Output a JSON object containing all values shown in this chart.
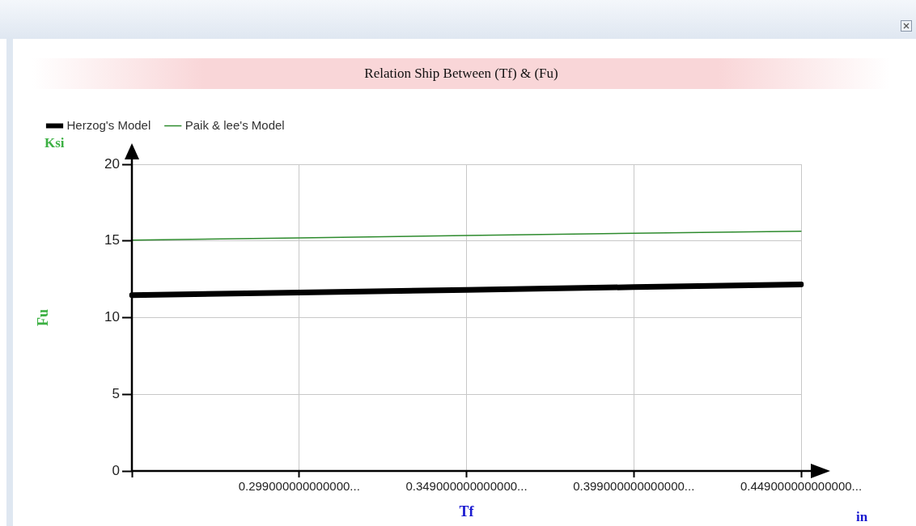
{
  "chart_data": {
    "type": "line",
    "title": "Relation Ship Between (Tf) & (Fu)",
    "xlabel": "Tf",
    "ylabel": "Fu",
    "categories": [
      null,
      "0.299000000000000...",
      "0.349000000000000...",
      "0.399000000000000...",
      "0.449000000000000..."
    ],
    "series": [
      {
        "name": "Herzog's Model",
        "color": "#000000",
        "values": [
          11.47,
          11.64,
          11.81,
          11.99,
          12.16
        ]
      },
      {
        "name": "Paik & lee's Model",
        "color": "#2e8b2e",
        "values": [
          15.05,
          15.2,
          15.35,
          15.5,
          15.63
        ]
      }
    ],
    "ylim": [
      0,
      20
    ],
    "yticks": [
      0,
      5,
      10,
      15,
      20
    ],
    "annotations": [
      "Ksi",
      "in"
    ],
    "grid": true,
    "legend": "top left",
    "marker": "none",
    "line_style": "solid"
  }
}
